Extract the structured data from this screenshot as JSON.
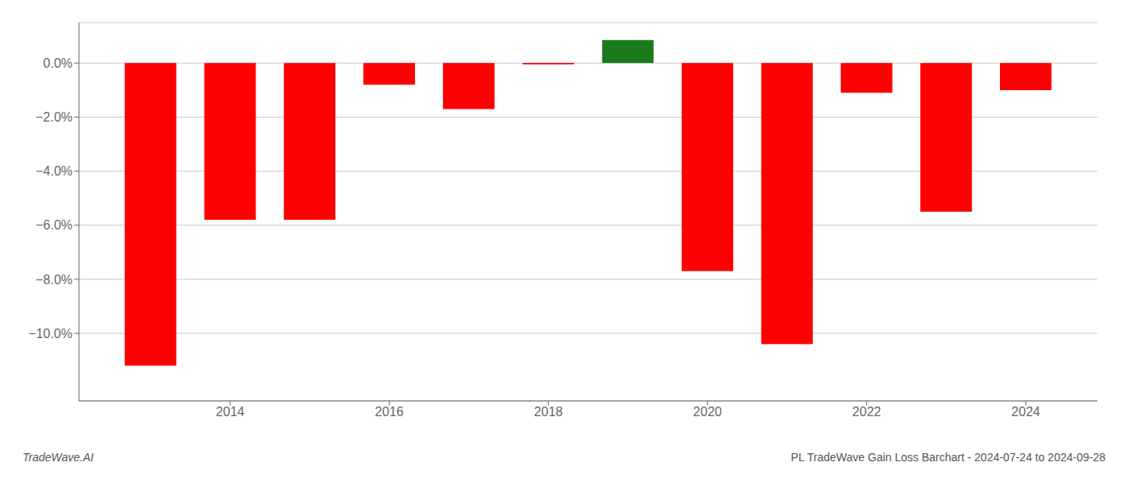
{
  "chart_data": {
    "type": "bar",
    "title": "PL TradeWave Gain Loss Barchart - 2024-07-24 to 2024-09-28",
    "annotations": [
      "TradeWave.AI"
    ],
    "x": [
      2013,
      2014,
      2015,
      2016,
      2017,
      2018,
      2019,
      2020,
      2021,
      2022,
      2023,
      2024
    ],
    "values": [
      -11.2,
      -5.8,
      -5.8,
      -0.8,
      -1.7,
      -0.05,
      0.85,
      -7.7,
      -10.4,
      -1.1,
      -5.5,
      -1.0
    ],
    "colors": [
      "#ff0000",
      "#ff0000",
      "#ff0000",
      "#ff0000",
      "#ff0000",
      "#ff0000",
      "#1a7a1a",
      "#ff0000",
      "#ff0000",
      "#ff0000",
      "#ff0000",
      "#ff0000"
    ],
    "xlim": [
      2012.1,
      2024.9
    ],
    "xticks": [
      2014,
      2016,
      2018,
      2020,
      2022,
      2024
    ],
    "ylim": [
      -12.5,
      1.5
    ],
    "yticks": [
      {
        "value": 0.0,
        "label": "0.0%"
      },
      {
        "value": -2.0,
        "label": "−2.0%"
      },
      {
        "value": -4.0,
        "label": "−4.0%"
      },
      {
        "value": -6.0,
        "label": "−6.0%"
      },
      {
        "value": -8.0,
        "label": "−8.0%"
      },
      {
        "value": -10.0,
        "label": "−10.0%"
      }
    ],
    "grid": true
  }
}
